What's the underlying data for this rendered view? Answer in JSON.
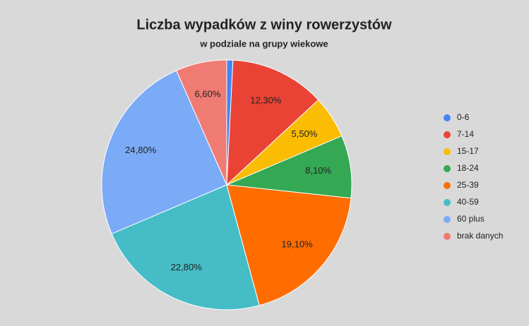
{
  "chart_data": {
    "type": "pie",
    "title": "Liczba wypadków z winy rowerzystów",
    "subtitle": "w podziale na grupy wiekowe",
    "categories": [
      "0-6",
      "7-14",
      "15-17",
      "18-24",
      "25-39",
      "40-59",
      "60 plus",
      "brak danych"
    ],
    "values": [
      0.8,
      12.3,
      5.5,
      8.1,
      19.1,
      22.8,
      24.8,
      6.6
    ],
    "value_labels": [
      null,
      "12,30%",
      "5,50%",
      "8,10%",
      "19,10%",
      "22,80%",
      "24,80%",
      "6,60%"
    ],
    "colors": [
      "#4285f4",
      "#ea4335",
      "#fbbc04",
      "#34a853",
      "#ff6d01",
      "#46bdc6",
      "#7baaf7",
      "#f07b72"
    ],
    "legend": "right"
  }
}
